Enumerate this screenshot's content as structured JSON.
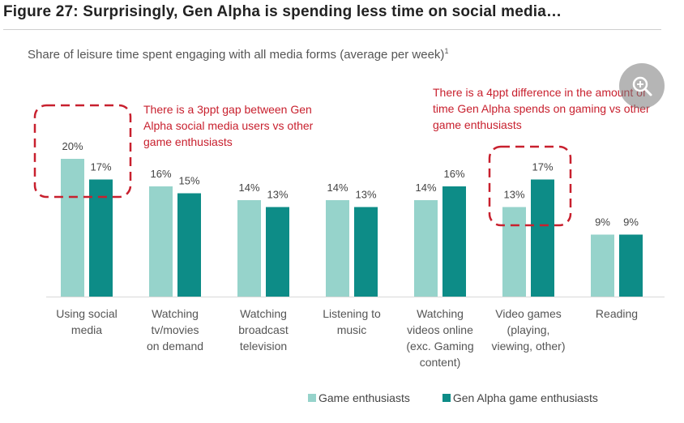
{
  "header": {
    "title": "Figure 27: Surprisingly, Gen Alpha is spending less time on social media…",
    "subtitle": "Share of leisure time spent engaging with all media forms (average per week)",
    "footnote_mark": "1"
  },
  "colors": {
    "game_enthusiasts": "#96d3cb",
    "gen_alpha": "#0d8c87",
    "annotation": "#c8202e"
  },
  "chart_data": {
    "type": "bar",
    "categories": [
      [
        "Using social",
        "media"
      ],
      [
        "Watching",
        "tv/movies",
        "on demand"
      ],
      [
        "Watching",
        "broadcast",
        "television"
      ],
      [
        "Listening to",
        "music"
      ],
      [
        "Watching",
        "videos online",
        "(exc. Gaming",
        "content)"
      ],
      [
        "Video games",
        "(playing,",
        "viewing, other)"
      ],
      [
        "Reading"
      ]
    ],
    "series": [
      {
        "name": "Game enthusiasts",
        "values": [
          20,
          16,
          14,
          14,
          14,
          13,
          9
        ],
        "labels": [
          "20%",
          "16%",
          "14%",
          "14%",
          "14%",
          "13%",
          "9%"
        ]
      },
      {
        "name": "Gen Alpha game enthusiasts",
        "values": [
          17,
          15,
          13,
          13,
          16,
          17,
          9
        ],
        "labels": [
          "17%",
          "15%",
          "13%",
          "13%",
          "16%",
          "17%",
          "9%"
        ]
      }
    ],
    "ylim": [
      0,
      20
    ],
    "grid": false,
    "legend": "bottom",
    "annotations": [
      {
        "lines": [
          "There is a 3ppt gap between Gen",
          "Alpha social media users vs other",
          "game enthusiasts"
        ],
        "category_index": 0
      },
      {
        "lines": [
          "There is a 4ppt difference in  the amount of",
          "time Gen Alpha spends on gaming vs other",
          "game enthusiasts"
        ],
        "category_index": 5
      }
    ]
  },
  "zoom_button": {
    "icon": "zoom-in-icon"
  }
}
